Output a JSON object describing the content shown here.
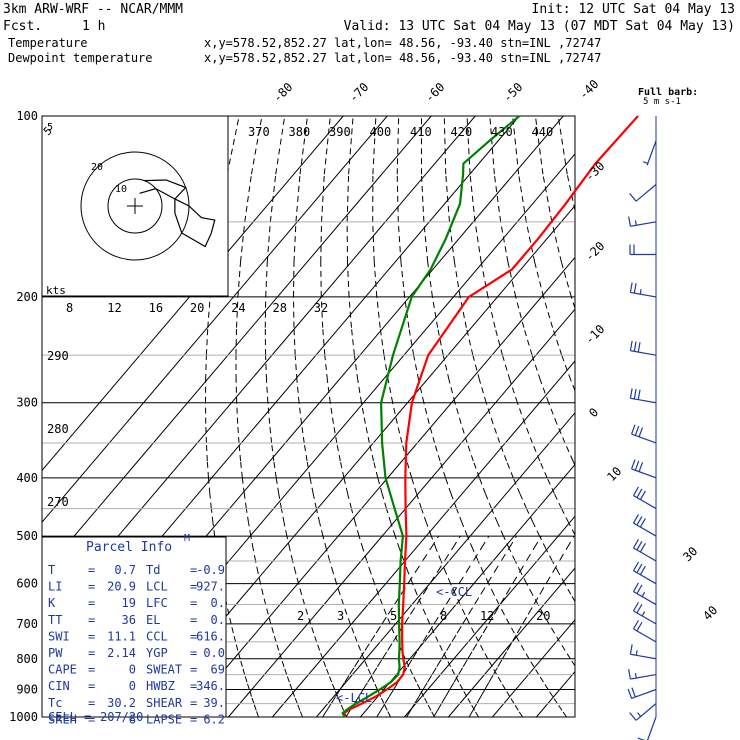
{
  "header": {
    "model": "3km ARW-WRF -- NCAR/MMM",
    "init": "Init: 12 UTC Sat 04 May 13",
    "fcst_label": "Fcst.",
    "fcst_value": "1 h",
    "valid": "Valid: 13 UTC Sat 04 May 13 (07 MDT Sat 04 May 13)"
  },
  "legend": [
    {
      "name": "Temperature",
      "color": "#ff0000",
      "info": "x,y=578.52,852.27   lat,lon= 48.56, -93.40   stn=INL ,72747"
    },
    {
      "name": "Dewpoint temperature",
      "color": "#008000",
      "info": "x,y=578.52,852.27   lat,lon= 48.56, -93.40   stn=INL ,72747"
    }
  ],
  "colors": {
    "temperature": "#ff0000",
    "dewpoint": "#008000",
    "text_blue": "#1e3aa0",
    "grid": "#000000",
    "hodograph_path": "#000000"
  },
  "barb_key": {
    "line1": "Full barb:",
    "line2": "5 m s-1"
  },
  "hodograph": {
    "units_label": "kts",
    "ring_labels": [
      "5",
      "10",
      "20"
    ]
  },
  "theta_e_labels": [
    "370",
    "380",
    "390",
    "400",
    "410",
    "420",
    "430",
    "440"
  ],
  "mixing_ratio_top_labels": [
    "8",
    "12",
    "16",
    "20",
    "24",
    "28",
    "32"
  ],
  "mixing_ratio_low_labels": [
    "2",
    "3",
    "5",
    "8",
    "12",
    "20"
  ],
  "theta_labels": [
    "290",
    "280",
    "270"
  ],
  "temp_iso_labels": [
    "-80",
    "-70",
    "-60",
    "-50",
    "-40",
    "-30",
    "-20",
    "-10",
    "0",
    "10",
    "30",
    "40"
  ],
  "pressure_labels": [
    "100",
    "200",
    "300",
    "400",
    "500",
    "600",
    "700",
    "800",
    "900",
    "1000"
  ],
  "parcel": {
    "title": "Parcel Info",
    "marker": "M",
    "ccl_marker": "<-CCL",
    "lcl_marker": "<-LCL",
    "rows": [
      {
        "l1": "T",
        "v1": "0.7",
        "l2": "Td",
        "v2": "-0.9"
      },
      {
        "l1": "LI",
        "v1": "20.9",
        "l2": "LCL",
        "v2": "927."
      },
      {
        "l1": "K",
        "v1": "19",
        "l2": "LFC",
        "v2": "0."
      },
      {
        "l1": "TT",
        "v1": "36",
        "l2": "EL",
        "v2": "0."
      },
      {
        "l1": "SWI",
        "v1": "11.1",
        "l2": "CCL",
        "v2": "616."
      },
      {
        "l1": "PW",
        "v1": "2.14",
        "l2": "YGP",
        "v2": "0.0"
      },
      {
        "l1": "CAPE",
        "v1": "0",
        "l2": "SWEAT",
        "v2": "69"
      },
      {
        "l1": "CIN",
        "v1": "0",
        "l2": "HWBZ",
        "v2": "346."
      },
      {
        "l1": "Tc",
        "v1": "30.2",
        "l2": "SHEAR",
        "v2": "39."
      },
      {
        "l1": "SREH",
        "v1": "6",
        "l2": "LAPSE",
        "v2": "6.2"
      }
    ],
    "cell_label": "CELL =",
    "cell_value": "207/20"
  },
  "chart_data": {
    "type": "line",
    "diagram": "skew-t log-p",
    "y_axis": "pressure (hPa)",
    "y_scale": "log",
    "ylim": [
      1000,
      100
    ],
    "x_axis": "temperature (C)",
    "xlim": [
      -40,
      50
    ],
    "series": [
      {
        "name": "Temperature",
        "color": "#ff0000",
        "points": [
          [
            1000,
            -3.4
          ],
          [
            985,
            -4.5
          ],
          [
            970,
            -3.8
          ],
          [
            950,
            -2.3
          ],
          [
            925,
            -0.5
          ],
          [
            900,
            0.7
          ],
          [
            875,
            1.6
          ],
          [
            850,
            1.5
          ],
          [
            825,
            0.4
          ],
          [
            800,
            -1.5
          ],
          [
            775,
            -3.3
          ],
          [
            750,
            -5.0
          ],
          [
            700,
            -8.5
          ],
          [
            650,
            -12.0
          ],
          [
            600,
            -15.8
          ],
          [
            550,
            -20.0
          ],
          [
            500,
            -24.5
          ],
          [
            450,
            -30.0
          ],
          [
            400,
            -36.0
          ],
          [
            350,
            -42.5
          ],
          [
            300,
            -49.0
          ],
          [
            250,
            -54.5
          ],
          [
            200,
            -56.5
          ],
          [
            180,
            -52.0
          ],
          [
            160,
            -52.0
          ],
          [
            140,
            -52.5
          ],
          [
            120,
            -53.5
          ],
          [
            100,
            -53.0
          ]
        ]
      },
      {
        "name": "Dewpoint temperature",
        "color": "#008000",
        "points": [
          [
            1000,
            -3.6
          ],
          [
            985,
            -4.8
          ],
          [
            970,
            -4.4
          ],
          [
            950,
            -3.6
          ],
          [
            925,
            -2.2
          ],
          [
            900,
            -0.9
          ],
          [
            875,
            0.2
          ],
          [
            850,
            0.4
          ],
          [
            825,
            -0.8
          ],
          [
            800,
            -2.5
          ],
          [
            775,
            -4.0
          ],
          [
            750,
            -5.6
          ],
          [
            700,
            -9.2
          ],
          [
            650,
            -13.0
          ],
          [
            600,
            -16.8
          ],
          [
            550,
            -21.0
          ],
          [
            500,
            -25.3
          ],
          [
            450,
            -32.5
          ],
          [
            400,
            -40.5
          ],
          [
            350,
            -48.0
          ],
          [
            300,
            -56.0
          ],
          [
            250,
            -62.5
          ],
          [
            200,
            -69.5
          ],
          [
            180,
            -70.5
          ],
          [
            160,
            -73.0
          ],
          [
            140,
            -76.5
          ],
          [
            125,
            -81.5
          ],
          [
            120,
            -83.5
          ],
          [
            110,
            -82.0
          ],
          [
            100,
            -80.0
          ]
        ]
      }
    ],
    "wind_barbs": [
      {
        "p": 1000,
        "dir": 200,
        "spd_kt": 10
      },
      {
        "p": 950,
        "dir": 230,
        "spd_kt": 15
      },
      {
        "p": 900,
        "dir": 250,
        "spd_kt": 20
      },
      {
        "p": 850,
        "dir": 260,
        "spd_kt": 15
      },
      {
        "p": 800,
        "dir": 280,
        "spd_kt": 15
      },
      {
        "p": 750,
        "dir": 300,
        "spd_kt": 20
      },
      {
        "p": 700,
        "dir": 300,
        "spd_kt": 25
      },
      {
        "p": 650,
        "dir": 300,
        "spd_kt": 25
      },
      {
        "p": 600,
        "dir": 300,
        "spd_kt": 30
      },
      {
        "p": 550,
        "dir": 300,
        "spd_kt": 30
      },
      {
        "p": 500,
        "dir": 300,
        "spd_kt": 30
      },
      {
        "p": 450,
        "dir": 300,
        "spd_kt": 30
      },
      {
        "p": 400,
        "dir": 290,
        "spd_kt": 30
      },
      {
        "p": 350,
        "dir": 290,
        "spd_kt": 30
      },
      {
        "p": 300,
        "dir": 280,
        "spd_kt": 30
      },
      {
        "p": 250,
        "dir": 280,
        "spd_kt": 30
      },
      {
        "p": 200,
        "dir": 280,
        "spd_kt": 25
      },
      {
        "p": 170,
        "dir": 270,
        "spd_kt": 20
      },
      {
        "p": 150,
        "dir": 260,
        "spd_kt": 15
      },
      {
        "p": 130,
        "dir": 230,
        "spd_kt": 10
      },
      {
        "p": 110,
        "dir": 200,
        "spd_kt": 5
      }
    ]
  }
}
